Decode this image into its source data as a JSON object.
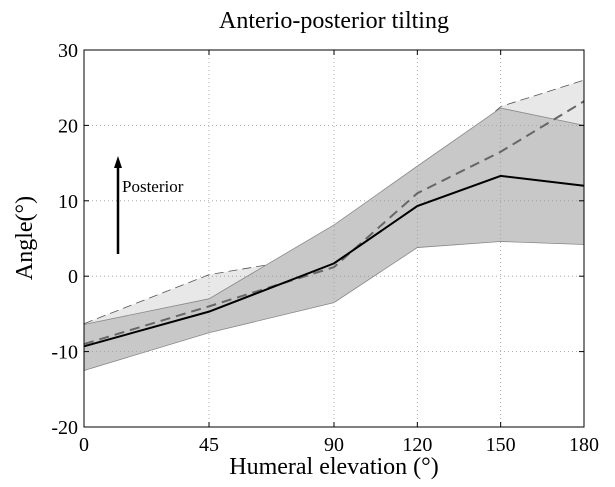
{
  "chart_data": {
    "type": "line",
    "title": "Anterio-posterior tilting",
    "xlabel": "Humeral elevation (°)",
    "ylabel": "Angle(°)",
    "x_ticks": [
      "0",
      "45",
      "90",
      "120",
      "150",
      "180"
    ],
    "x_values": [
      0,
      45,
      90,
      120,
      150,
      180
    ],
    "y_ticks": [
      "30",
      "20",
      "10",
      "0",
      "-10",
      "-20"
    ],
    "y_values": [
      30,
      20,
      10,
      0,
      -10,
      -20
    ],
    "xlim": [
      0,
      180
    ],
    "ylim": [
      -20,
      30
    ],
    "grid": true,
    "annotation": "Posterior",
    "series": [
      {
        "style": "solid-black",
        "x": [
          0,
          45,
          90,
          120,
          150,
          180
        ],
        "y": [
          -9.3,
          -4.7,
          1.7,
          9.3,
          13.3,
          12.0
        ],
        "band": {
          "lower": [
            -12.5,
            -7.5,
            -3.5,
            3.8,
            4.6,
            4.2
          ],
          "upper": [
            -6.4,
            -3.0,
            6.8,
            14.6,
            22.3,
            20.0
          ],
          "color": "#c8c8c8"
        }
      },
      {
        "style": "dashed-gray",
        "x": [
          0,
          45,
          90,
          120,
          150,
          180
        ],
        "y": [
          -9.0,
          -4.0,
          1.2,
          11.0,
          16.5,
          23.2
        ],
        "band": {
          "lower": [
            -12.5,
            -7.3,
            -1.5,
            6.5,
            11.5,
            20.0
          ],
          "upper": [
            -6.3,
            0.2,
            3.0,
            12.5,
            22.5,
            26.0
          ],
          "color": "#e8e8e8"
        }
      }
    ]
  }
}
